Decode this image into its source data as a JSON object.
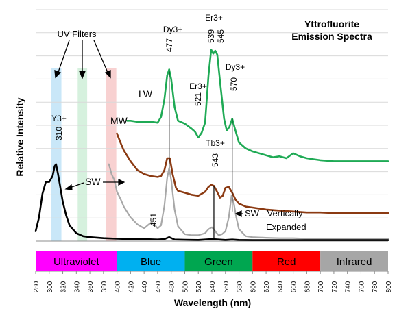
{
  "chart_data": {
    "type": "line",
    "title": "Yttrofluorite\nEmission Spectra",
    "xlabel": "Wavelength (nm)",
    "ylabel": "Relative Intensity",
    "xlim": [
      280,
      800
    ],
    "x_ticks": [
      280,
      300,
      320,
      340,
      360,
      380,
      400,
      420,
      440,
      460,
      480,
      500,
      520,
      540,
      560,
      580,
      600,
      620,
      640,
      660,
      680,
      700,
      720,
      740,
      760,
      780,
      800
    ],
    "grid": "horizontal",
    "colors": {
      "lw": "#1faa55",
      "mw": "#8b3a12",
      "sw": "#000000",
      "sw_expanded": "#a8a8a8",
      "ultraviolet": "#ff00ff",
      "blue": "#00b0f0",
      "green": "#00a650",
      "red": "#ff0000",
      "infrared": "#a6a6a6"
    },
    "series": [
      {
        "key": "lw",
        "name": "LW",
        "x": [
          415,
          420,
          430,
          440,
          450,
          460,
          465,
          470,
          474,
          477,
          480,
          485,
          490,
          500,
          510,
          515,
          520,
          525,
          530,
          535,
          539,
          542,
          545,
          548,
          552,
          558,
          562,
          566,
          570,
          574,
          580,
          590,
          600,
          620,
          630,
          640,
          650,
          660,
          670,
          680,
          690,
          700,
          720,
          740,
          760,
          780,
          800
        ],
        "y": [
          6.1,
          6.1,
          6.05,
          6.05,
          6.05,
          6.0,
          6.3,
          7.2,
          8.4,
          8.7,
          8.2,
          6.8,
          6.1,
          5.95,
          5.7,
          5.55,
          5.25,
          5.5,
          6.0,
          8.4,
          9.7,
          9.5,
          9.65,
          9.45,
          8.1,
          6.2,
          5.6,
          5.8,
          6.2,
          5.7,
          5.0,
          4.7,
          4.55,
          4.35,
          4.25,
          4.3,
          4.2,
          4.45,
          4.3,
          4.2,
          4.15,
          4.1,
          4.05,
          4.05,
          4.05,
          4.05,
          4.05
        ]
      },
      {
        "key": "mw",
        "name": "MW",
        "x": [
          400,
          405,
          410,
          420,
          430,
          440,
          450,
          460,
          465,
          470,
          474,
          478,
          482,
          487,
          490,
          500,
          510,
          520,
          530,
          535,
          539,
          543,
          547,
          552,
          556,
          560,
          565,
          570,
          575,
          580,
          590,
          600,
          620,
          640,
          660,
          680,
          700,
          720,
          740,
          760,
          780,
          800
        ],
        "y": [
          5.45,
          5.0,
          4.6,
          4.05,
          3.6,
          3.4,
          3.3,
          3.25,
          3.3,
          3.6,
          4.2,
          4.2,
          3.4,
          2.7,
          2.55,
          2.45,
          2.35,
          2.3,
          2.5,
          2.75,
          2.85,
          2.8,
          2.55,
          2.2,
          2.3,
          2.7,
          2.75,
          2.45,
          2.1,
          1.9,
          1.75,
          1.7,
          1.6,
          1.55,
          1.5,
          1.45,
          1.45,
          1.42,
          1.42,
          1.42,
          1.42,
          1.42
        ]
      },
      {
        "key": "sw",
        "name": "SW",
        "x": [
          280,
          285,
          290,
          295,
          300,
          305,
          308,
          310,
          313,
          316,
          320,
          325,
          330,
          340,
          350,
          360,
          380,
          400,
          420,
          440,
          460,
          470,
          477,
          485,
          500,
          520,
          540,
          560,
          570,
          580,
          600,
          640,
          680,
          720,
          760,
          800
        ],
        "y": [
          0.5,
          1.2,
          2.4,
          3.0,
          3.0,
          3.3,
          3.8,
          3.9,
          3.4,
          2.8,
          2.0,
          1.3,
          0.8,
          0.4,
          0.25,
          0.2,
          0.15,
          0.12,
          0.1,
          0.1,
          0.08,
          0.1,
          0.2,
          0.08,
          0.07,
          0.06,
          0.1,
          0.06,
          0.08,
          0.06,
          0.05,
          0.05,
          0.05,
          0.05,
          0.05,
          0.05
        ]
      },
      {
        "key": "sw_expanded",
        "name": "SW - Vertically\nExpanded",
        "x": [
          388,
          392,
          396,
          400,
          405,
          410,
          420,
          430,
          440,
          447,
          451,
          455,
          460,
          465,
          470,
          474,
          477,
          480,
          485,
          490,
          500,
          510,
          520,
          530,
          535,
          540,
          543,
          546,
          550,
          555,
          560,
          565,
          569,
          572,
          576,
          580,
          590,
          600,
          620,
          640,
          660,
          680,
          700,
          720,
          740,
          760,
          780,
          800
        ],
        "y": [
          3.9,
          3.4,
          3.1,
          2.5,
          2.15,
          1.75,
          1.2,
          0.85,
          0.65,
          0.85,
          0.95,
          0.85,
          0.65,
          0.8,
          1.8,
          3.2,
          3.7,
          3.1,
          1.6,
          0.75,
          0.35,
          0.3,
          0.3,
          0.4,
          0.6,
          0.7,
          0.6,
          0.45,
          0.3,
          0.35,
          0.5,
          1.2,
          2.3,
          2.0,
          1.2,
          0.6,
          0.25,
          0.2,
          0.17,
          0.15,
          0.15,
          0.12,
          0.12,
          0.12,
          0.12,
          0.12,
          0.12,
          0.12
        ]
      }
    ],
    "filter_bands": [
      {
        "key": "uv310",
        "x": [
          303,
          318
        ],
        "color": "#bfe3f7"
      },
      {
        "key": "uv350",
        "x": [
          342,
          356
        ],
        "color": "#cfeed8"
      },
      {
        "key": "uv390",
        "x": [
          384,
          399
        ],
        "color": "#f7c9c9"
      }
    ],
    "color_bands": [
      {
        "key": "ultraviolet",
        "label": "Ultraviolet",
        "x": [
          280,
          400
        ],
        "color": "#ff00ff"
      },
      {
        "key": "blue",
        "label": "Blue",
        "x": [
          400,
          500
        ],
        "color": "#00b0f0"
      },
      {
        "key": "green",
        "label": "Green",
        "x": [
          500,
          600
        ],
        "color": "#00a650"
      },
      {
        "key": "red",
        "label": "Red",
        "x": [
          600,
          700
        ],
        "color": "#ff0000"
      },
      {
        "key": "infrared",
        "label": "Infrared",
        "x": [
          700,
          800
        ],
        "color": "#a6a6a6"
      }
    ],
    "peak_markers": [
      {
        "key": "dy477",
        "x": 477,
        "y_top": 8.6,
        "y_bottom": 3.7
      },
      {
        "key": "tb543",
        "x": 543,
        "y_top": 2.8,
        "y_bottom": 0.1
      },
      {
        "key": "dy570",
        "x": 570,
        "y_top": 6.2,
        "y_bottom": 1.5
      }
    ],
    "annotations": {
      "uv_filters": "UV Filters",
      "y3": "Y3+",
      "y3_value": "310",
      "dy477": "Dy3+",
      "dy477_value": "477",
      "er539_label": "Er3+",
      "er539_value": "539",
      "er545_value": "545",
      "er521_label": "Er3+",
      "er521_value": "521",
      "dy570": "Dy3+",
      "dy570_value": "570",
      "tb543": "Tb3+",
      "tb543_value": "543",
      "lw": "LW",
      "mw": "MW",
      "sw": "SW",
      "sw_expanded_line1": "SW - Vertically",
      "sw_expanded_line2": "Expanded",
      "p451": "451"
    }
  }
}
